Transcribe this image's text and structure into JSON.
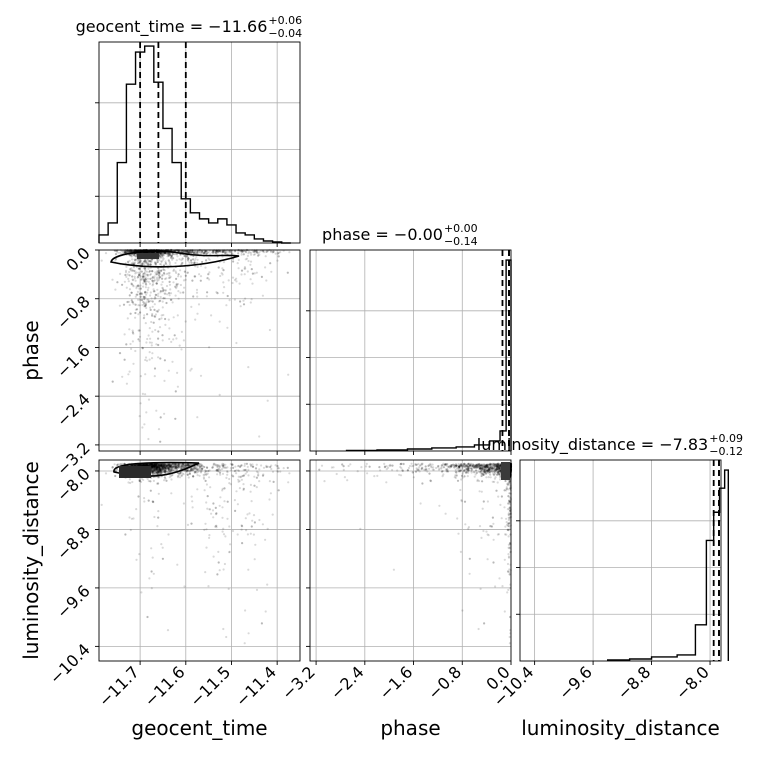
{
  "chart_data": {
    "type": "scatter",
    "subtype": "corner-plot",
    "parameters": [
      "geocent_time",
      "phase",
      "luminosity_distance"
    ],
    "ranges": {
      "geocent_time": [
        -11.79,
        -11.35
      ],
      "phase": [
        -3.3,
        0.0
      ],
      "luminosity_distance": [
        -10.6,
        -7.85
      ]
    },
    "titles": [
      {
        "param": "geocent_time",
        "main": "geocent_time = −11.66",
        "plus": "+0.06",
        "minus": "−0.04"
      },
      {
        "param": "phase",
        "main": "phase = −0.00",
        "plus": "+0.00",
        "minus": "−0.14"
      },
      {
        "param": "luminosity_distance",
        "main": "luminosity_distance = −7.83",
        "plus": "+0.09",
        "minus": "−0.12"
      }
    ],
    "ticks": {
      "geocent_time": {
        "values": [
          -11.7,
          -11.6,
          -11.5,
          -11.4
        ],
        "labels": [
          "−11.7",
          "−11.6",
          "−11.5",
          "−11.4"
        ]
      },
      "phase": {
        "values": [
          -3.2,
          -2.4,
          -1.6,
          -0.8,
          0.0
        ],
        "labels": [
          "−3.2",
          "−2.4",
          "−1.6",
          "−0.8",
          "0.0"
        ]
      },
      "luminosity_distance": {
        "values": [
          -10.4,
          -9.6,
          -8.8,
          -8.0
        ],
        "labels": [
          "−10.4",
          "−9.6",
          "−8.8",
          "−8.0"
        ]
      }
    },
    "axis_labels": {
      "geocent_time": "geocent_time",
      "phase": "phase",
      "luminosity_distance": "luminosity_distance"
    },
    "quantiles": {
      "geocent_time": [
        -11.7,
        -11.66,
        -11.6
      ],
      "phase": [
        -0.14,
        -0.0,
        0.0
      ],
      "luminosity_distance": [
        -7.95,
        -7.83,
        -7.74
      ]
    },
    "histograms": {
      "geocent_time": {
        "edges": [
          -11.79,
          -11.77,
          -11.75,
          -11.73,
          -11.71,
          -11.69,
          -11.67,
          -11.65,
          -11.63,
          -11.61,
          -11.59,
          -11.57,
          -11.55,
          -11.53,
          -11.51,
          -11.49,
          -11.47,
          -11.45,
          -11.43,
          -11.41,
          -11.39,
          -11.37
        ],
        "counts": [
          0.04,
          0.1,
          0.4,
          0.79,
          0.95,
          0.98,
          0.8,
          0.57,
          0.4,
          0.22,
          0.15,
          0.12,
          0.1,
          0.12,
          0.09,
          0.05,
          0.04,
          0.02,
          0.01,
          0.005,
          0.0
        ]
      },
      "phase": {
        "edges": [
          -2.7,
          -2.2,
          -1.7,
          -1.3,
          -0.9,
          -0.6,
          -0.35,
          -0.18,
          -0.08,
          0.0
        ],
        "counts": [
          0.003,
          0.005,
          0.01,
          0.015,
          0.02,
          0.03,
          0.05,
          0.1,
          0.95
        ]
      },
      "luminosity_distance": {
        "edges": [
          -9.4,
          -9.1,
          -8.8,
          -8.45,
          -8.2,
          -8.05,
          -7.95,
          -7.87,
          -7.8,
          -7.75
        ],
        "counts": [
          0.005,
          0.01,
          0.02,
          0.03,
          0.18,
          0.6,
          0.74,
          0.86,
          0.95
        ]
      }
    },
    "grid": true,
    "legend": "none"
  }
}
